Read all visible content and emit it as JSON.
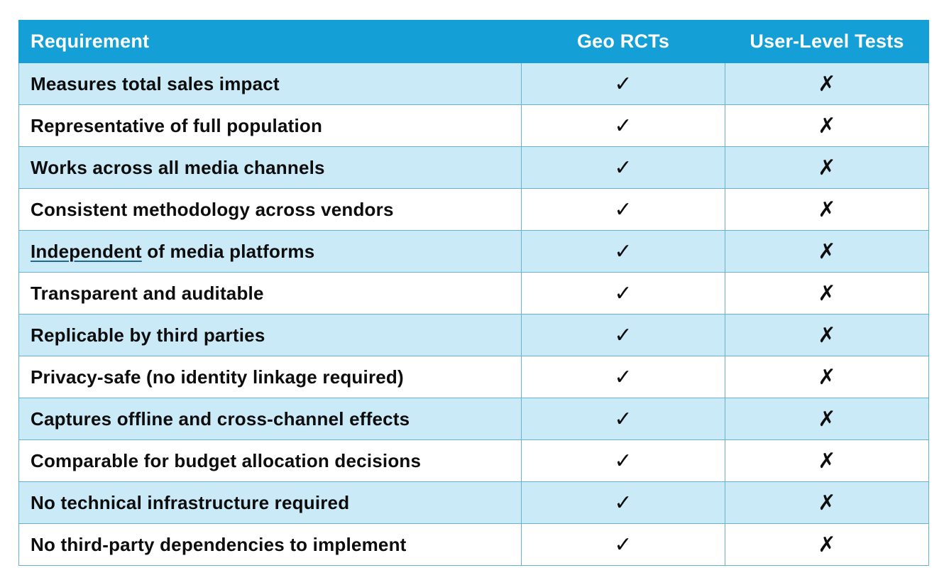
{
  "table": {
    "columns": [
      "Requirement",
      "Geo RCTs",
      "User-Level Tests"
    ],
    "colors": {
      "header_bg": "#149fd6",
      "header_text": "#ffffff",
      "row_alt_bg": "#cbeaf7",
      "row_bg": "#ffffff",
      "grid_line": "#67b2ce",
      "body_text": "#0d0d0d",
      "underline_color": "#20688f"
    },
    "symbols": {
      "check": "✓",
      "cross": "✗"
    },
    "rows": [
      {
        "requirement": "Measures total sales impact",
        "underlined_prefix": "",
        "geo_rcts": "✓",
        "user_level_tests": "✗"
      },
      {
        "requirement": "Representative of full population",
        "underlined_prefix": "",
        "geo_rcts": "✓",
        "user_level_tests": "✗"
      },
      {
        "requirement": "Works across all media channels",
        "underlined_prefix": "",
        "geo_rcts": "✓",
        "user_level_tests": "✗"
      },
      {
        "requirement": "Consistent methodology across vendors",
        "underlined_prefix": "",
        "geo_rcts": "✓",
        "user_level_tests": "✗"
      },
      {
        "requirement": " of media platforms",
        "underlined_prefix": "Independent",
        "geo_rcts": "✓",
        "user_level_tests": "✗"
      },
      {
        "requirement": "Transparent and auditable",
        "underlined_prefix": "",
        "geo_rcts": "✓",
        "user_level_tests": "✗"
      },
      {
        "requirement": "Replicable by third parties",
        "underlined_prefix": "",
        "geo_rcts": "✓",
        "user_level_tests": "✗"
      },
      {
        "requirement": "Privacy-safe (no identity linkage required)",
        "underlined_prefix": "",
        "geo_rcts": "✓",
        "user_level_tests": "✗"
      },
      {
        "requirement": "Captures offline and cross-channel effects",
        "underlined_prefix": "",
        "geo_rcts": "✓",
        "user_level_tests": "✗"
      },
      {
        "requirement": "Comparable for budget allocation decisions",
        "underlined_prefix": "",
        "geo_rcts": "✓",
        "user_level_tests": "✗"
      },
      {
        "requirement": "No technical infrastructure required",
        "underlined_prefix": "",
        "geo_rcts": "✓",
        "user_level_tests": "✗"
      },
      {
        "requirement": "No third-party dependencies to implement",
        "underlined_prefix": "",
        "geo_rcts": "✓",
        "user_level_tests": "✗"
      }
    ]
  }
}
